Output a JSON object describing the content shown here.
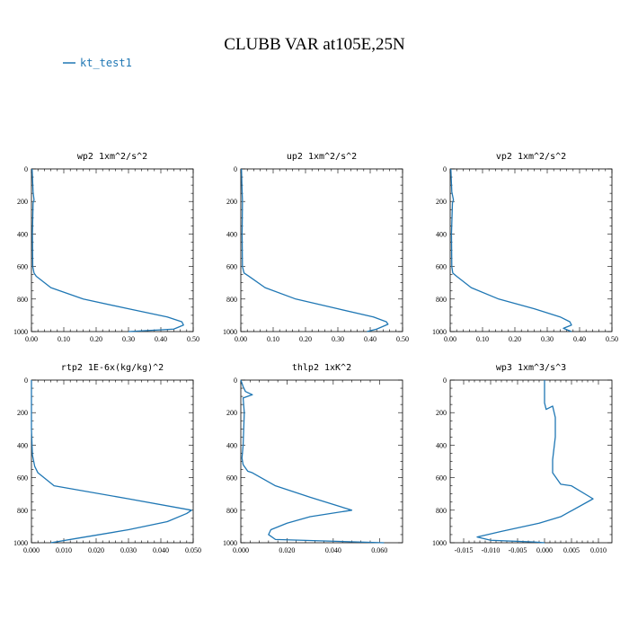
{
  "figure": {
    "title": "CLUBB VAR at105E,25N",
    "legend": {
      "label": "kt_test1",
      "color": "#1f77b4"
    }
  },
  "chart_data": [
    {
      "type": "line",
      "title": "wp2  1xm^2/s^2",
      "xlim": [
        0,
        0.5
      ],
      "ylim": [
        1000,
        0
      ],
      "xticks": [
        "0.00",
        "0.10",
        "0.20",
        "0.30",
        "0.40",
        "0.50"
      ],
      "yticks": [
        "0",
        "200",
        "400",
        "600",
        "800",
        "1000"
      ],
      "series": [
        {
          "x": [
            0.002,
            0.005,
            0.008,
            0.005,
            0.003,
            0.004,
            0.008,
            0.015,
            0.06,
            0.16,
            0.3,
            0.42,
            0.465,
            0.47,
            0.44,
            0.3
          ],
          "y": [
            0,
            140,
            190,
            210,
            400,
            600,
            640,
            660,
            730,
            800,
            860,
            910,
            940,
            960,
            985,
            1000
          ]
        }
      ]
    },
    {
      "type": "line",
      "title": "up2  1xm^2/s^2",
      "xlim": [
        0,
        0.5
      ],
      "ylim": [
        1000,
        0
      ],
      "xticks": [
        "0.00",
        "0.10",
        "0.20",
        "0.30",
        "0.40",
        "0.50"
      ],
      "yticks": [
        "0",
        "200",
        "400",
        "600",
        "800",
        "1000"
      ],
      "series": [
        {
          "x": [
            0.002,
            0.004,
            0.005,
            0.005,
            0.004,
            0.005,
            0.01,
            0.025,
            0.075,
            0.17,
            0.3,
            0.41,
            0.45,
            0.455,
            0.42,
            0.39
          ],
          "y": [
            0,
            140,
            190,
            210,
            400,
            600,
            640,
            660,
            730,
            800,
            860,
            910,
            940,
            955,
            985,
            1000
          ]
        }
      ]
    },
    {
      "type": "line",
      "title": "vp2  1xm^2/s^2",
      "xlim": [
        0,
        0.5
      ],
      "ylim": [
        1000,
        0
      ],
      "xticks": [
        "0.00",
        "0.10",
        "0.20",
        "0.30",
        "0.40",
        "0.50"
      ],
      "yticks": [
        "0",
        "200",
        "400",
        "600",
        "800",
        "1000"
      ],
      "series": [
        {
          "x": [
            0.002,
            0.005,
            0.01,
            0.007,
            0.004,
            0.005,
            0.008,
            0.02,
            0.065,
            0.15,
            0.26,
            0.34,
            0.37,
            0.375,
            0.35,
            0.375
          ],
          "y": [
            0,
            140,
            190,
            210,
            400,
            600,
            640,
            660,
            730,
            800,
            860,
            910,
            940,
            960,
            980,
            1000
          ]
        }
      ]
    },
    {
      "type": "line",
      "title": "rtp2  1E-6x(kg/kg)^2",
      "xlim": [
        0,
        0.05
      ],
      "ylim": [
        1000,
        0
      ],
      "xticks": [
        "0.000",
        "0.010",
        "0.020",
        "0.030",
        "0.040",
        "0.050"
      ],
      "yticks": [
        "0",
        "200",
        "400",
        "600",
        "800",
        "1000"
      ],
      "series": [
        {
          "x": [
            0.0,
            0.0,
            0.0003,
            0.001,
            0.002,
            0.007,
            0.03,
            0.0495,
            0.048,
            0.042,
            0.03,
            0.015,
            0.006
          ],
          "y": [
            0,
            300,
            460,
            530,
            570,
            650,
            730,
            800,
            820,
            870,
            920,
            970,
            1000
          ]
        }
      ]
    },
    {
      "type": "line",
      "title": "thlp2  1xK^2",
      "xlim": [
        0,
        0.07
      ],
      "ylim": [
        1000,
        0
      ],
      "xticks": [
        "0.000",
        "0.020",
        "0.040",
        "0.060"
      ],
      "yticks": [
        "0",
        "200",
        "400",
        "600",
        "800",
        "1000"
      ],
      "series": [
        {
          "x": [
            0.0,
            0.001,
            0.002,
            0.005,
            0.001,
            0.0015,
            0.001,
            0.0005,
            0.001,
            0.003,
            0.005,
            0.015,
            0.03,
            0.048,
            0.03,
            0.02,
            0.013,
            0.012,
            0.015,
            0.062
          ],
          "y": [
            0,
            40,
            70,
            90,
            110,
            200,
            400,
            480,
            520,
            560,
            570,
            650,
            720,
            800,
            840,
            880,
            920,
            950,
            980,
            1000
          ]
        }
      ]
    },
    {
      "type": "line",
      "title": "wp3  1xm^3/s^3",
      "xlim": [
        -0.0175,
        0.0125
      ],
      "ylim": [
        1000,
        0
      ],
      "xticks": [
        "-0.015",
        "-0.010",
        "-0.005",
        "0.000",
        "0.005",
        "0.010"
      ],
      "yticks": [
        "0",
        "200",
        "400",
        "600",
        "800",
        "1000"
      ],
      "series": [
        {
          "x": [
            0.0,
            0.0,
            0.0003,
            0.0015,
            0.002,
            0.002,
            0.0015,
            0.0015,
            0.003,
            0.005,
            0.009,
            0.003,
            -0.001,
            -0.008,
            -0.0125,
            -0.01,
            -0.002,
            0.0
          ],
          "y": [
            0,
            140,
            180,
            160,
            230,
            350,
            490,
            570,
            640,
            650,
            730,
            840,
            880,
            930,
            965,
            985,
            995,
            1000
          ]
        }
      ]
    }
  ]
}
